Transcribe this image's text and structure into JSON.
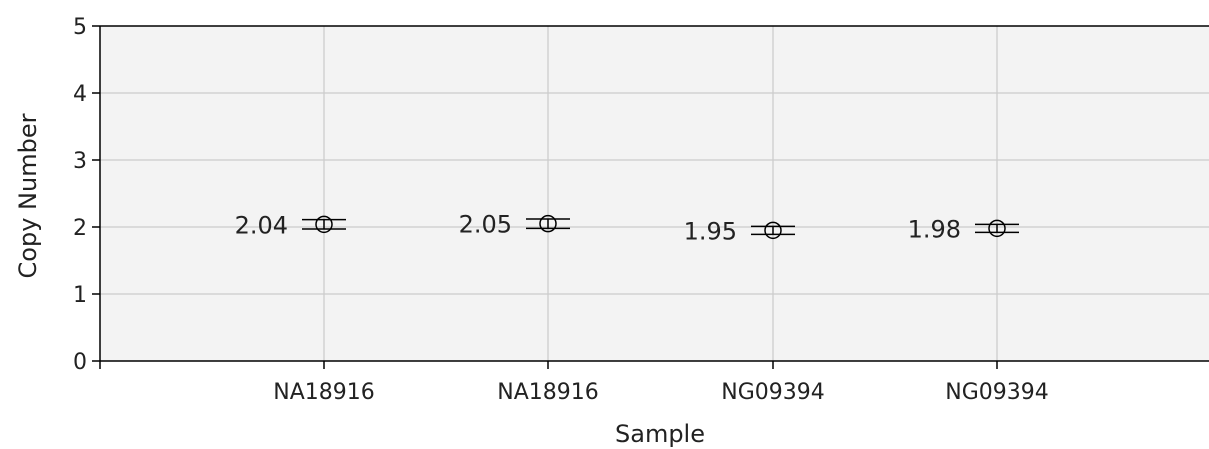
{
  "chart_data": {
    "type": "scatter",
    "xlabel": "Sample",
    "ylabel": "Copy Number",
    "ylim": [
      0,
      5
    ],
    "yticks": [
      "0",
      "1",
      "2",
      "3",
      "4",
      "5"
    ],
    "categories": [
      "NA18916",
      "NA18916",
      "NG09394",
      "NG09394"
    ],
    "series": [
      {
        "values": [
          2.04,
          2.05,
          1.95,
          1.98
        ],
        "labels": [
          "2.04",
          "2.05",
          "1.95",
          "1.98"
        ],
        "error_low": [
          1.97,
          1.98,
          1.89,
          1.92
        ],
        "error_high": [
          2.11,
          2.12,
          2.01,
          2.04
        ]
      }
    ],
    "grid": true,
    "colors": {
      "background": "#f3f3f3",
      "grid": "#cccccc",
      "axis": "#000000",
      "marker": "#000000"
    }
  }
}
